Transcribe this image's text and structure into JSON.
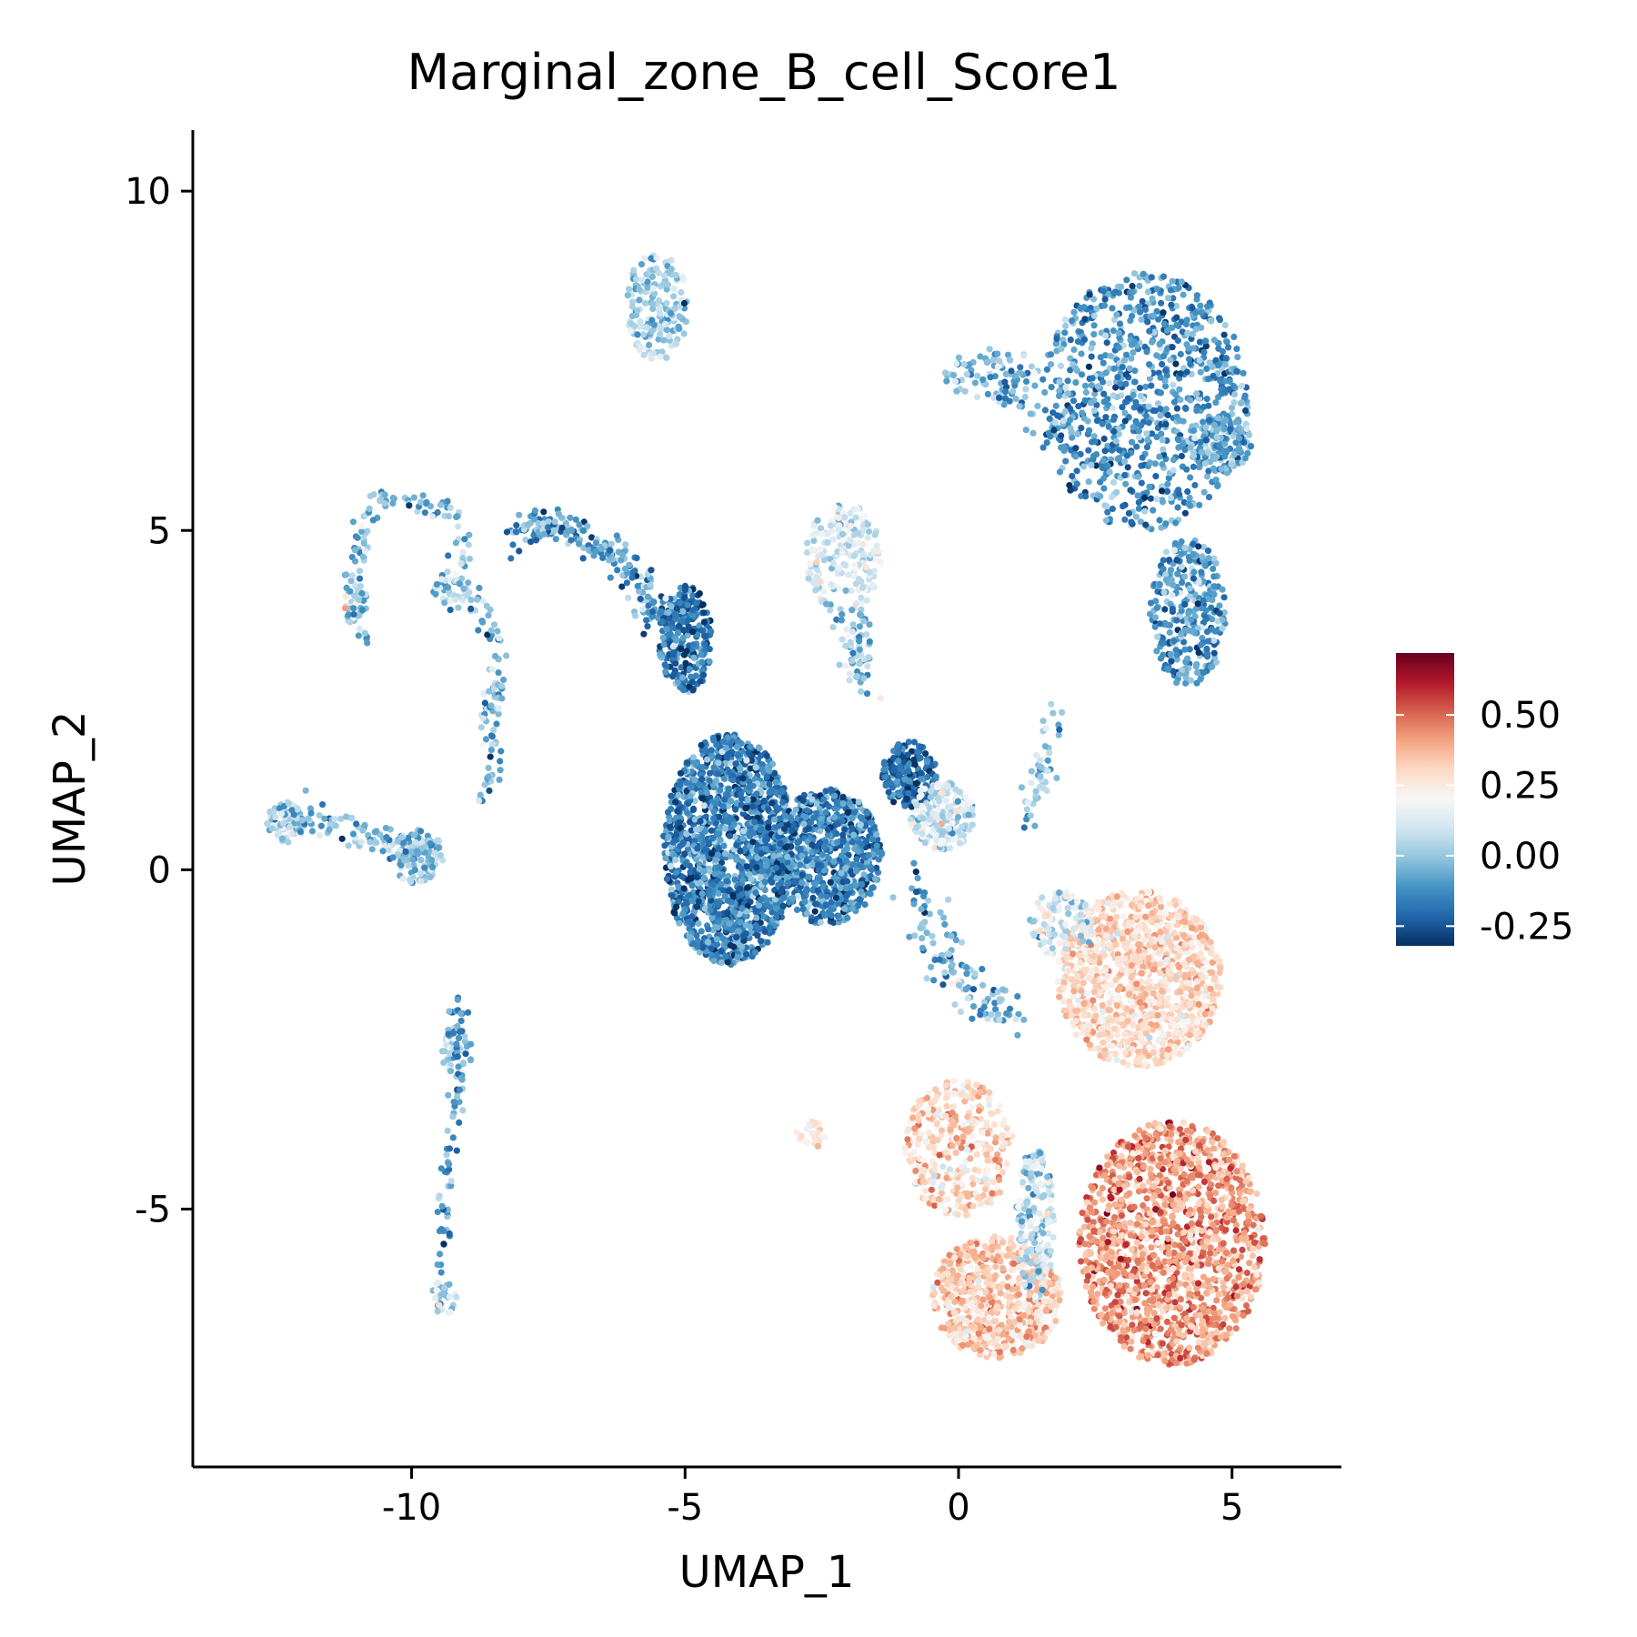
{
  "chart_data": {
    "type": "scatter",
    "title": "Marginal_zone_B_cell_Score1",
    "xlabel": "UMAP_1",
    "ylabel": "UMAP_2",
    "xlim": [
      -14,
      7
    ],
    "ylim": [
      -8.8,
      10.9
    ],
    "x_ticks": [
      {
        "value": -10,
        "label": "-10"
      },
      {
        "value": -5,
        "label": "-5"
      },
      {
        "value": 0,
        "label": "0"
      },
      {
        "value": 5,
        "label": "5"
      }
    ],
    "y_ticks": [
      {
        "value": 10,
        "label": "10"
      },
      {
        "value": 5,
        "label": "5"
      },
      {
        "value": 0,
        "label": "0"
      },
      {
        "value": -5,
        "label": "-5"
      }
    ],
    "grid": false,
    "legend": {
      "placement": "right",
      "min": -0.32,
      "max": 0.72,
      "ticks": [
        {
          "value": 0.5,
          "label": "0.50"
        },
        {
          "value": 0.25,
          "label": "0.25"
        },
        {
          "value": 0.0,
          "label": "0.00"
        },
        {
          "value": -0.25,
          "label": "-0.25"
        }
      ],
      "colors": [
        "#053061",
        "#2166ac",
        "#4393c3",
        "#92c5de",
        "#d1e5f0",
        "#f7f7f7",
        "#fddbc7",
        "#f4a582",
        "#d6604d",
        "#b2182b",
        "#67001f"
      ]
    },
    "clusters": [
      {
        "name": "top-center",
        "cx": -5.5,
        "cy": 8.3,
        "rx": 0.6,
        "ry": 0.8,
        "n": 180,
        "mean": 0.02,
        "sd": 0.09
      },
      {
        "name": "top-right-main",
        "cx": 3.4,
        "cy": 6.9,
        "rx": 1.9,
        "ry": 1.9,
        "n": 900,
        "mean": -0.12,
        "sd": 0.09
      },
      {
        "name": "top-right-lobe",
        "cx": 4.8,
        "cy": 6.3,
        "rx": 0.6,
        "ry": 0.4,
        "n": 120,
        "mean": -0.05,
        "sd": 0.08
      },
      {
        "name": "top-right-lower",
        "cx": 4.2,
        "cy": 3.8,
        "rx": 0.7,
        "ry": 1.1,
        "n": 300,
        "mean": -0.1,
        "sd": 0.09
      },
      {
        "name": "top-right-arm",
        "cx": 0.6,
        "cy": 7.3,
        "rx": 0.9,
        "ry": 0.4,
        "n": 80,
        "mean": -0.03,
        "sd": 0.1
      },
      {
        "name": "center-small",
        "cx": -2.1,
        "cy": 4.6,
        "rx": 0.7,
        "ry": 0.8,
        "n": 200,
        "mean": 0.12,
        "sd": 0.08
      },
      {
        "name": "center-small-tail",
        "cx": -1.8,
        "cy": 3.3,
        "rx": 0.2,
        "ry": 0.6,
        "n": 40,
        "mean": -0.02,
        "sd": 0.08
      },
      {
        "name": "big-blue-bowl",
        "cx": -4.2,
        "cy": 0.3,
        "rx": 1.2,
        "ry": 1.7,
        "n": 1500,
        "mean": -0.16,
        "sd": 0.09
      },
      {
        "name": "big-blue-mid",
        "cx": -2.4,
        "cy": 0.2,
        "rx": 1.0,
        "ry": 1.0,
        "n": 700,
        "mean": -0.16,
        "sd": 0.09
      },
      {
        "name": "big-blue-right",
        "cx": -0.9,
        "cy": 1.4,
        "rx": 0.5,
        "ry": 0.5,
        "n": 200,
        "mean": -0.2,
        "sd": 0.07
      },
      {
        "name": "big-blue-neck",
        "cx": -5.0,
        "cy": 3.4,
        "rx": 0.5,
        "ry": 0.8,
        "n": 250,
        "mean": -0.17,
        "sd": 0.08
      },
      {
        "name": "center-light",
        "cx": -0.3,
        "cy": 0.8,
        "rx": 0.6,
        "ry": 0.5,
        "n": 180,
        "mean": 0.1,
        "sd": 0.09
      },
      {
        "name": "bottom-right-upper",
        "cx": 3.3,
        "cy": -1.6,
        "rx": 1.5,
        "ry": 1.3,
        "n": 1100,
        "mean": 0.3,
        "sd": 0.07
      },
      {
        "name": "bottom-right-lower",
        "cx": 3.9,
        "cy": -5.5,
        "rx": 1.7,
        "ry": 1.8,
        "n": 1500,
        "mean": 0.42,
        "sd": 0.09
      },
      {
        "name": "bottom-middle-left",
        "cx": 0.7,
        "cy": -6.3,
        "rx": 1.2,
        "ry": 0.9,
        "n": 600,
        "mean": 0.33,
        "sd": 0.08
      },
      {
        "name": "bottom-left-ring",
        "cx": 0.0,
        "cy": -4.1,
        "rx": 1.0,
        "ry": 1.0,
        "n": 350,
        "mean": 0.3,
        "sd": 0.09
      },
      {
        "name": "bottom-center-blue",
        "cx": 1.4,
        "cy": -5.2,
        "rx": 0.35,
        "ry": 1.1,
        "n": 180,
        "mean": 0.05,
        "sd": 0.1
      },
      {
        "name": "middle-connector",
        "cx": 1.9,
        "cy": -0.8,
        "rx": 0.6,
        "ry": 0.5,
        "n": 120,
        "mean": 0.1,
        "sd": 0.1
      },
      {
        "name": "left-cluster",
        "cx": -9.9,
        "cy": 0.2,
        "rx": 0.5,
        "ry": 0.4,
        "n": 120,
        "mean": 0.0,
        "sd": 0.09
      },
      {
        "name": "far-left-cluster",
        "cx": -12.3,
        "cy": 0.7,
        "rx": 0.35,
        "ry": 0.3,
        "n": 80,
        "mean": 0.05,
        "sd": 0.09
      },
      {
        "name": "left-mid-blob",
        "cx": -11.0,
        "cy": 3.9,
        "rx": 0.25,
        "ry": 0.3,
        "n": 35,
        "mean": 0.1,
        "sd": 0.1
      },
      {
        "name": "left-mid-blob-2",
        "cx": -9.3,
        "cy": 4.1,
        "rx": 0.3,
        "ry": 0.3,
        "n": 40,
        "mean": 0.05,
        "sd": 0.1
      },
      {
        "name": "small-left-bottom",
        "cx": -9.4,
        "cy": -6.3,
        "rx": 0.25,
        "ry": 0.25,
        "n": 30,
        "mean": 0.05,
        "sd": 0.1
      },
      {
        "name": "small-left-mid",
        "cx": -9.2,
        "cy": -2.7,
        "rx": 0.3,
        "ry": 0.4,
        "n": 50,
        "mean": 0.0,
        "sd": 0.1
      },
      {
        "name": "left-small-orange",
        "cx": -2.7,
        "cy": -3.9,
        "rx": 0.3,
        "ry": 0.2,
        "n": 25,
        "mean": 0.25,
        "sd": 0.07
      }
    ],
    "paths": [
      {
        "name": "left-arc",
        "points": [
          [
            -10.6,
            5.5
          ],
          [
            -10.1,
            5.4
          ],
          [
            -9.4,
            5.3
          ],
          [
            -9.0,
            4.9
          ],
          [
            -9.1,
            4.3
          ],
          [
            -8.6,
            3.6
          ],
          [
            -8.4,
            2.9
          ],
          [
            -8.6,
            2.2
          ],
          [
            -8.5,
            1.5
          ],
          [
            -8.8,
            1.0
          ]
        ],
        "n": 140,
        "spread": 0.1,
        "mean": -0.05,
        "sd": 0.1
      },
      {
        "name": "left-arc-down",
        "points": [
          [
            -10.6,
            5.5
          ],
          [
            -10.9,
            5.0
          ],
          [
            -11.1,
            4.4
          ],
          [
            -11.0,
            3.7
          ],
          [
            -10.9,
            3.4
          ]
        ],
        "n": 60,
        "spread": 0.1,
        "mean": -0.05,
        "sd": 0.1
      },
      {
        "name": "top-curve",
        "points": [
          [
            -8.2,
            5.0
          ],
          [
            -7.4,
            5.1
          ],
          [
            -6.6,
            4.8
          ],
          [
            -5.9,
            4.3
          ],
          [
            -5.4,
            3.6
          ]
        ],
        "n": 220,
        "spread": 0.12,
        "mean": -0.1,
        "sd": 0.1
      },
      {
        "name": "left-connector",
        "points": [
          [
            -12.1,
            0.8
          ],
          [
            -11.3,
            0.7
          ],
          [
            -10.5,
            0.4
          ],
          [
            -9.9,
            0.2
          ]
        ],
        "n": 80,
        "spread": 0.12,
        "mean": -0.03,
        "sd": 0.1
      },
      {
        "name": "left-vertical",
        "points": [
          [
            -9.2,
            -1.9
          ],
          [
            -9.1,
            -3.0
          ],
          [
            -9.3,
            -4.0
          ],
          [
            -9.4,
            -5.0
          ],
          [
            -9.4,
            -6.1
          ]
        ],
        "n": 80,
        "spread": 0.08,
        "mean": -0.12,
        "sd": 0.08
      },
      {
        "name": "center-down-arm",
        "points": [
          [
            -0.8,
            -0.1
          ],
          [
            -0.5,
            -1.0
          ],
          [
            0.2,
            -1.8
          ],
          [
            1.1,
            -2.2
          ]
        ],
        "n": 120,
        "spread": 0.18,
        "mean": -0.05,
        "sd": 0.1
      },
      {
        "name": "center-up-arm",
        "points": [
          [
            1.3,
            0.8
          ],
          [
            1.5,
            1.5
          ],
          [
            1.7,
            2.3
          ]
        ],
        "n": 50,
        "spread": 0.12,
        "mean": 0.0,
        "sd": 0.1
      },
      {
        "name": "top-right-tail",
        "points": [
          [
            0.6,
            7.2
          ],
          [
            1.1,
            6.8
          ],
          [
            1.6,
            6.5
          ],
          [
            2.1,
            6.7
          ]
        ],
        "n": 40,
        "spread": 0.15,
        "mean": -0.08,
        "sd": 0.1
      },
      {
        "name": "center-small-tail-line",
        "points": [
          [
            -2.3,
            3.8
          ],
          [
            -2.0,
            3.0
          ],
          [
            -1.6,
            2.6
          ]
        ],
        "n": 30,
        "spread": 0.12,
        "mean": 0.0,
        "sd": 0.1
      }
    ]
  }
}
